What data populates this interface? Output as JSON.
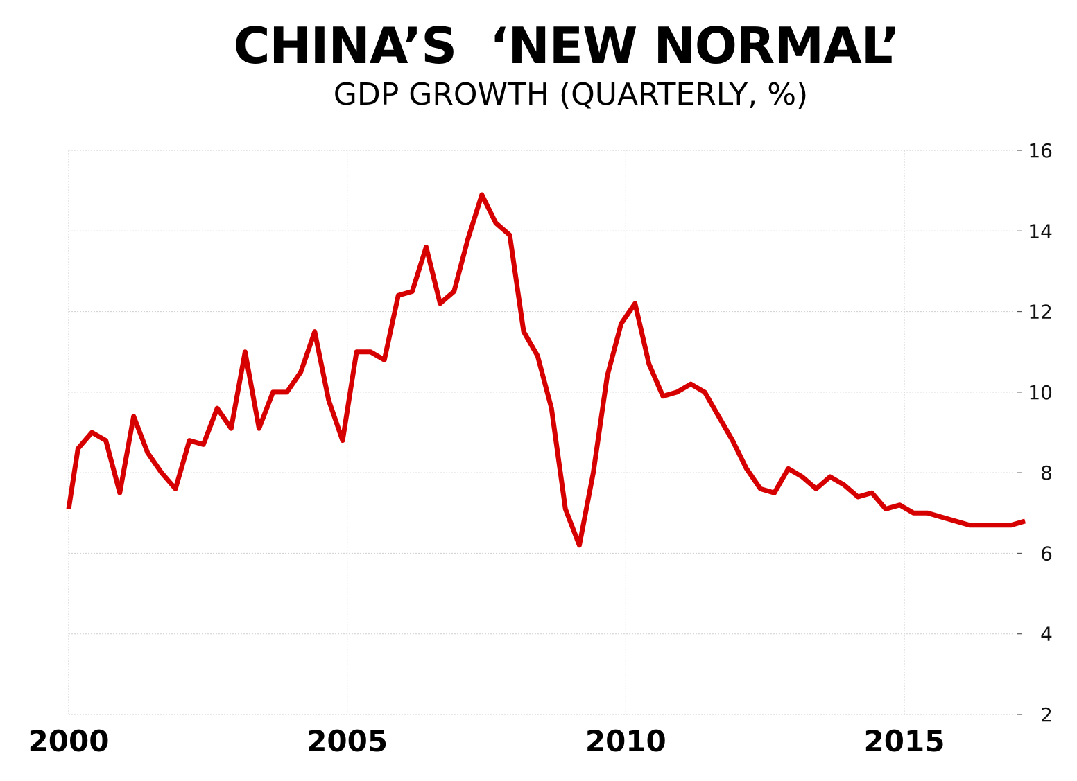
{
  "chart_data": {
    "type": "line",
    "title": "CHINA’S  ‘NEW NORMAL’",
    "subtitle": "GDP GROWTH (QUARTERLY, %)",
    "xlabel": "",
    "ylabel": "",
    "xlim": [
      2000,
      2017.25
    ],
    "ylim": [
      2,
      16
    ],
    "x_ticks": [
      2000,
      2005,
      2010,
      2015
    ],
    "y_ticks": [
      2,
      4,
      6,
      8,
      10,
      12,
      14,
      16
    ],
    "y_axis_side": "right",
    "grid": true,
    "legend": "none",
    "series": [
      {
        "color": "#d60000",
        "x": [
          2000,
          2000.167,
          2000.417,
          2000.667,
          2000.917,
          2001.167,
          2001.417,
          2001.667,
          2001.917,
          2002.167,
          2002.417,
          2002.667,
          2002.917,
          2003.167,
          2003.417,
          2003.667,
          2003.917,
          2004.167,
          2004.417,
          2004.667,
          2004.917,
          2005.167,
          2005.417,
          2005.667,
          2005.917,
          2006.167,
          2006.417,
          2006.667,
          2006.917,
          2007.167,
          2007.417,
          2007.667,
          2007.917,
          2008.167,
          2008.417,
          2008.667,
          2008.917,
          2009.167,
          2009.417,
          2009.667,
          2009.917,
          2010.167,
          2010.417,
          2010.667,
          2010.917,
          2011.167,
          2011.417,
          2011.667,
          2011.917,
          2012.167,
          2012.417,
          2012.667,
          2012.917,
          2013.167,
          2013.417,
          2013.667,
          2013.917,
          2014.167,
          2014.417,
          2014.667,
          2014.917,
          2015.167,
          2015.417,
          2015.667,
          2015.917,
          2016.167,
          2016.417,
          2016.667,
          2016.917,
          2017.167
        ],
        "values": [
          7.1,
          8.6,
          9.0,
          8.8,
          7.5,
          9.4,
          8.5,
          8.0,
          7.6,
          8.8,
          8.7,
          9.6,
          9.1,
          11.0,
          9.1,
          10.0,
          10.0,
          10.5,
          11.5,
          9.8,
          8.8,
          11.0,
          11.0,
          10.8,
          12.4,
          12.5,
          13.6,
          12.2,
          12.5,
          13.8,
          14.9,
          14.2,
          13.9,
          11.5,
          10.9,
          9.6,
          7.1,
          6.2,
          8.0,
          10.4,
          11.7,
          12.2,
          10.7,
          9.9,
          10.0,
          10.2,
          10.0,
          9.4,
          8.8,
          8.1,
          7.6,
          7.5,
          8.1,
          7.9,
          7.6,
          7.9,
          7.7,
          7.4,
          7.5,
          7.1,
          7.2,
          7.0,
          7.0,
          6.9,
          6.8,
          6.7,
          6.7,
          6.7,
          6.7,
          6.8
        ]
      }
    ]
  }
}
